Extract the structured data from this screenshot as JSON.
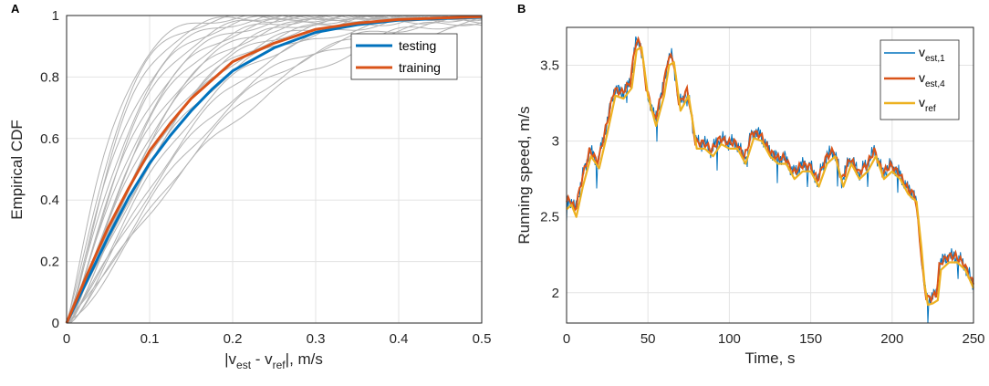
{
  "chart_data": [
    {
      "panel": "A",
      "type": "line",
      "xlabel": {
        "main1": "|v",
        "sub1": "est",
        "main2": " - v",
        "sub2": "ref",
        "main3": "|, m/s"
      },
      "ylabel": "Empirical CDF",
      "xlim": [
        0,
        0.5
      ],
      "ylim": [
        0,
        1
      ],
      "xticks": [
        0,
        0.1,
        0.2,
        0.3,
        0.4,
        0.5
      ],
      "xtick_labels": [
        "0",
        "0.1",
        "0.2",
        "0.3",
        "0.4",
        "0.5"
      ],
      "yticks": [
        0,
        0.2,
        0.4,
        0.6,
        0.8,
        1
      ],
      "ytick_labels": [
        "0",
        "0.2",
        "0.4",
        "0.6",
        "0.8",
        "1"
      ],
      "grid": true,
      "legend_position": "top-right",
      "series": [
        {
          "name": "testing",
          "color": "#0072BD",
          "x": [
            0,
            0.025,
            0.05,
            0.075,
            0.1,
            0.125,
            0.15,
            0.175,
            0.2,
            0.25,
            0.3,
            0.35,
            0.4,
            0.45,
            0.5
          ],
          "values": [
            0,
            0.14,
            0.28,
            0.41,
            0.52,
            0.61,
            0.69,
            0.76,
            0.82,
            0.895,
            0.945,
            0.97,
            0.985,
            0.99,
            0.995
          ]
        },
        {
          "name": "training",
          "color": "#D95319",
          "x": [
            0,
            0.025,
            0.05,
            0.075,
            0.1,
            0.125,
            0.15,
            0.175,
            0.2,
            0.25,
            0.3,
            0.35,
            0.4,
            0.45,
            0.5
          ],
          "values": [
            0,
            0.16,
            0.31,
            0.44,
            0.56,
            0.65,
            0.73,
            0.79,
            0.85,
            0.91,
            0.955,
            0.975,
            0.987,
            0.992,
            0.996
          ]
        }
      ],
      "individual_curves": {
        "color": "#b3b3b3",
        "count": 22,
        "scale_params": [
          0.055,
          0.06,
          0.065,
          0.07,
          0.075,
          0.08,
          0.085,
          0.09,
          0.095,
          0.1,
          0.105,
          0.11,
          0.115,
          0.12,
          0.125,
          0.13,
          0.14,
          0.15,
          0.16,
          0.17,
          0.18,
          0.19
        ]
      }
    },
    {
      "panel": "B",
      "type": "line",
      "xlabel": "Time, s",
      "ylabel": "Running speed, m/s",
      "xlim": [
        0,
        250
      ],
      "ylim": [
        1.8,
        3.75
      ],
      "xticks": [
        0,
        50,
        100,
        150,
        200,
        250
      ],
      "xtick_labels": [
        "0",
        "50",
        "100",
        "150",
        "200",
        "250"
      ],
      "yticks": [
        2,
        2.5,
        3,
        3.5
      ],
      "ytick_labels": [
        "2",
        "2.5",
        "3",
        "3.5"
      ],
      "grid": true,
      "legend_position": "top-right",
      "legend": [
        {
          "main": "v",
          "sub": "est,1",
          "color": "#0072BD"
        },
        {
          "main": "v",
          "sub": "est,4",
          "color": "#D95319"
        },
        {
          "main": "v",
          "sub": "ref",
          "color": "#EDB120"
        }
      ],
      "ref_x": [
        0,
        3,
        6,
        10,
        15,
        20,
        25,
        30,
        35,
        40,
        43,
        46,
        50,
        55,
        60,
        63,
        66,
        70,
        75,
        80,
        85,
        90,
        95,
        100,
        105,
        110,
        115,
        120,
        125,
        130,
        135,
        140,
        145,
        150,
        155,
        160,
        165,
        170,
        175,
        180,
        185,
        190,
        195,
        200,
        205,
        210,
        215,
        218,
        220,
        222,
        225,
        228,
        230,
        235,
        240,
        245,
        250
      ],
      "ref_y": [
        2.55,
        2.58,
        2.5,
        2.7,
        2.9,
        2.82,
        3.05,
        3.3,
        3.28,
        3.35,
        3.6,
        3.62,
        3.3,
        3.1,
        3.3,
        3.5,
        3.52,
        3.2,
        3.3,
        2.95,
        2.95,
        2.9,
        2.98,
        2.95,
        2.95,
        2.85,
        3.02,
        3.0,
        2.9,
        2.85,
        2.85,
        2.75,
        2.8,
        2.8,
        2.7,
        2.85,
        2.9,
        2.7,
        2.85,
        2.75,
        2.8,
        2.9,
        2.75,
        2.8,
        2.75,
        2.65,
        2.6,
        2.3,
        2.05,
        1.92,
        1.93,
        1.95,
        2.15,
        2.2,
        2.2,
        2.15,
        2.03
      ],
      "est4_offset_mean": 0.04,
      "est1_noise": 0.06
    }
  ]
}
